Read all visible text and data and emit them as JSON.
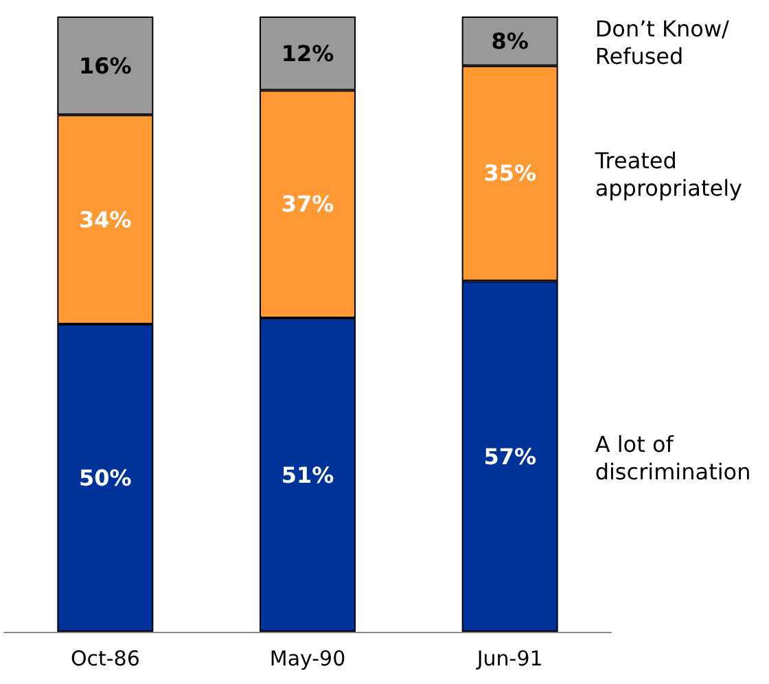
{
  "chart_data": {
    "type": "bar",
    "stacked": true,
    "categories": [
      "Oct-86",
      "May-90",
      "Jun-91"
    ],
    "series": [
      {
        "name": "A lot of discrimination",
        "color": "#003399",
        "values": [
          50,
          51,
          57
        ],
        "value_labels": [
          "50%",
          "51%",
          "57%"
        ]
      },
      {
        "name": "Treated appropriately",
        "color": "#ff9933",
        "values": [
          34,
          37,
          35
        ],
        "value_labels": [
          "34%",
          "37%",
          "35%"
        ]
      },
      {
        "name": "Don’t Know/ Refused",
        "color": "#999999",
        "values": [
          16,
          12,
          8
        ],
        "value_labels": [
          "16%",
          "12%",
          "8%"
        ]
      }
    ]
  }
}
